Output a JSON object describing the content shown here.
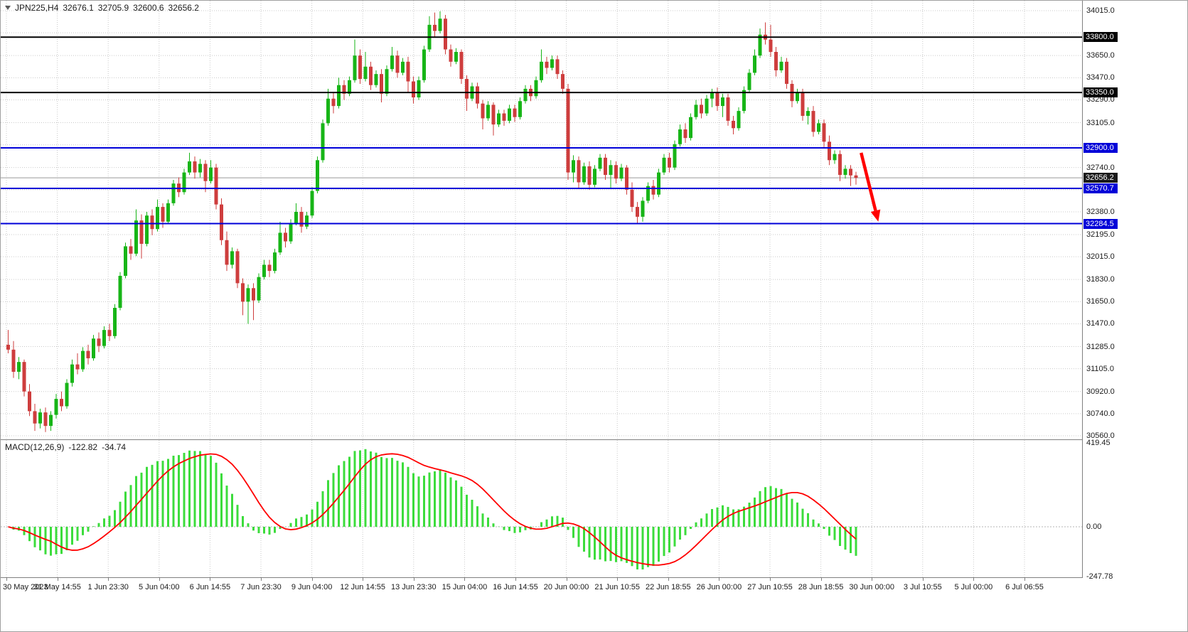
{
  "header": {
    "symbol": "JPN225,H4",
    "open": "32676.1",
    "high": "32705.9",
    "low": "32600.6",
    "close": "32656.2"
  },
  "macd": {
    "label": "MACD(12,26,9)",
    "main_value": "-122.82",
    "signal_value": "-34.74"
  },
  "chart_data": {
    "type": "candlestick",
    "symbol": "JPN225",
    "timeframe": "H4",
    "title": "JPN225,H4 32676.1 32705.9 32600.6 32656.2",
    "ohlc_header": {
      "open": 32676.1,
      "high": 32705.9,
      "low": 32600.6,
      "close": 32656.2
    },
    "price_axis": {
      "min": 30560,
      "max": 34015,
      "grid_values": [
        34015,
        33835,
        33650,
        33470,
        33290,
        33105,
        32925,
        32740,
        32560,
        32380,
        32195,
        32015,
        31830,
        31650,
        31470,
        31285,
        31105,
        30920,
        30740,
        30560
      ],
      "tick_labels": [
        {
          "value": 34015,
          "text": "34015.0"
        },
        {
          "value": 33650,
          "text": "33650.0"
        },
        {
          "value": 33470,
          "text": "33470.0"
        },
        {
          "value": 33290,
          "text": "33290.0"
        },
        {
          "value": 33105,
          "text": "33105.0"
        },
        {
          "value": 32740,
          "text": "32740.0"
        },
        {
          "value": 32380,
          "text": "32380.0"
        },
        {
          "value": 32195,
          "text": "32195.0"
        },
        {
          "value": 32015,
          "text": "32015.0"
        },
        {
          "value": 31830,
          "text": "31830.0"
        },
        {
          "value": 31650,
          "text": "31650.0"
        },
        {
          "value": 31470,
          "text": "31470.0"
        },
        {
          "value": 31285,
          "text": "31285.0"
        },
        {
          "value": 31105,
          "text": "31105.0"
        },
        {
          "value": 30920,
          "text": "30920.0"
        },
        {
          "value": 30740,
          "text": "30740.0"
        },
        {
          "value": 30560,
          "text": "30560.0"
        }
      ]
    },
    "time_labels": [
      "30 May 2023",
      "31 May 14:55",
      "1 Jun 23:30",
      "5 Jun 04:00",
      "6 Jun 14:55",
      "7 Jun 23:30",
      "9 Jun 04:00",
      "12 Jun 14:55",
      "13 Jun 23:30",
      "15 Jun 04:00",
      "16 Jun 14:55",
      "20 Jun 00:00",
      "21 Jun 10:55",
      "22 Jun 18:55",
      "26 Jun 00:00",
      "27 Jun 10:55",
      "28 Jun 18:55",
      "30 Jun 00:00",
      "3 Jul 10:55",
      "5 Jul 00:00",
      "6 Jul 06:55"
    ],
    "horizontal_lines": [
      {
        "price": 33800.0,
        "label": "33800.0",
        "color": "#000000"
      },
      {
        "price": 33350.0,
        "label": "33350.0",
        "color": "#000000"
      },
      {
        "price": 32900.0,
        "label": "32900.0",
        "color": "#0000d8"
      },
      {
        "price": 32570.7,
        "label": "32570.7",
        "color": "#0000d8"
      },
      {
        "price": 32284.5,
        "label": "32284.5",
        "color": "#0000d8"
      }
    ],
    "current_price": {
      "value": 32656.2,
      "label": "32656.2",
      "badge_color": "#1a1a1a"
    },
    "arrow": {
      "bar_from": 160.3,
      "price_from": 32860,
      "bar_to": 163,
      "price_to": 32390,
      "color": "#ff0000"
    },
    "indicator": {
      "name": "MACD",
      "params": [
        12,
        26,
        9
      ],
      "main_value": -122.82,
      "signal_value": -34.74,
      "axis": {
        "max": 419.45,
        "zero": 0.0,
        "min": -247.78
      },
      "tick_labels": [
        {
          "value": 419.45,
          "text": "419.45"
        },
        {
          "value": 0,
          "text": "0.00"
        },
        {
          "value": -247.78,
          "text": "-247.78"
        }
      ]
    },
    "colors": {
      "bull": "#17b517",
      "bear": "#ce3d3d",
      "macd_hist": "#3cdc3c",
      "macd_signal": "#ff0000",
      "grid": "#c9c9c9",
      "hline_blue": "#0000d8",
      "hline_black": "#000000",
      "current_line": "#9a9a9a"
    },
    "candles": [
      [
        31300,
        31420,
        31230,
        31260
      ],
      [
        31260,
        31330,
        31030,
        31080
      ],
      [
        31080,
        31200,
        31020,
        31160
      ],
      [
        31160,
        31180,
        30880,
        30920
      ],
      [
        30920,
        30980,
        30720,
        30760
      ],
      [
        30760,
        30820,
        30600,
        30660
      ],
      [
        30660,
        30780,
        30620,
        30750
      ],
      [
        30750,
        30790,
        30590,
        30640
      ],
      [
        30640,
        30760,
        30600,
        30730
      ],
      [
        30730,
        30900,
        30700,
        30860
      ],
      [
        30860,
        30920,
        30760,
        30800
      ],
      [
        30800,
        31020,
        30780,
        30990
      ],
      [
        30990,
        31180,
        30960,
        31140
      ],
      [
        31140,
        31230,
        31060,
        31100
      ],
      [
        31100,
        31280,
        31080,
        31250
      ],
      [
        31250,
        31300,
        31140,
        31190
      ],
      [
        31190,
        31380,
        31170,
        31350
      ],
      [
        31350,
        31400,
        31240,
        31290
      ],
      [
        31290,
        31450,
        31270,
        31420
      ],
      [
        31420,
        31470,
        31330,
        31370
      ],
      [
        31370,
        31630,
        31350,
        31600
      ],
      [
        31600,
        31890,
        31580,
        31860
      ],
      [
        31860,
        32130,
        31840,
        32100
      ],
      [
        32100,
        32160,
        31990,
        32040
      ],
      [
        32040,
        32400,
        32020,
        32310
      ],
      [
        32310,
        32360,
        32000,
        32120
      ],
      [
        32120,
        32380,
        32100,
        32350
      ],
      [
        32350,
        32400,
        32190,
        32240
      ],
      [
        32240,
        32480,
        32220,
        32420
      ],
      [
        32420,
        32450,
        32250,
        32300
      ],
      [
        32300,
        32480,
        32280,
        32450
      ],
      [
        32450,
        32640,
        32430,
        32610
      ],
      [
        32610,
        32660,
        32500,
        32540
      ],
      [
        32540,
        32730,
        32520,
        32700
      ],
      [
        32700,
        32860,
        32680,
        32790
      ],
      [
        32790,
        32830,
        32650,
        32700
      ],
      [
        32700,
        32810,
        32660,
        32770
      ],
      [
        32770,
        32800,
        32540,
        32630
      ],
      [
        32630,
        32800,
        32610,
        32740
      ],
      [
        32740,
        32770,
        32400,
        32440
      ],
      [
        32440,
        32490,
        32110,
        32150
      ],
      [
        32150,
        32220,
        31900,
        31950
      ],
      [
        31950,
        32090,
        31920,
        32060
      ],
      [
        32060,
        32080,
        31760,
        31800
      ],
      [
        31800,
        31840,
        31540,
        31650
      ],
      [
        31650,
        31790,
        31470,
        31760
      ],
      [
        31760,
        31800,
        31500,
        31660
      ],
      [
        31660,
        31880,
        31640,
        31850
      ],
      [
        31850,
        31990,
        31830,
        31950
      ],
      [
        31950,
        31990,
        31850,
        31900
      ],
      [
        31900,
        32080,
        31880,
        32050
      ],
      [
        32050,
        32300,
        32030,
        32210
      ],
      [
        32210,
        32250,
        32090,
        32140
      ],
      [
        32140,
        32320,
        32120,
        32290
      ],
      [
        32290,
        32450,
        32270,
        32380
      ],
      [
        32380,
        32420,
        32210,
        32260
      ],
      [
        32260,
        32380,
        32240,
        32350
      ],
      [
        32350,
        32580,
        32330,
        32550
      ],
      [
        32550,
        32830,
        32530,
        32800
      ],
      [
        32800,
        33130,
        32780,
        33100
      ],
      [
        33100,
        33380,
        33080,
        33300
      ],
      [
        33300,
        33350,
        33180,
        33240
      ],
      [
        33240,
        33470,
        33220,
        33410
      ],
      [
        33410,
        33450,
        33290,
        33340
      ],
      [
        33340,
        33480,
        33320,
        33450
      ],
      [
        33450,
        33780,
        33430,
        33650
      ],
      [
        33650,
        33700,
        33420,
        33460
      ],
      [
        33460,
        33680,
        33440,
        33560
      ],
      [
        33560,
        33600,
        33370,
        33410
      ],
      [
        33410,
        33530,
        33390,
        33500
      ],
      [
        33500,
        33540,
        33270,
        33340
      ],
      [
        33340,
        33570,
        33320,
        33540
      ],
      [
        33540,
        33720,
        33520,
        33650
      ],
      [
        33650,
        33690,
        33470,
        33510
      ],
      [
        33510,
        33630,
        33490,
        33600
      ],
      [
        33600,
        33640,
        33350,
        33440
      ],
      [
        33440,
        33480,
        33260,
        33310
      ],
      [
        33310,
        33480,
        33290,
        33450
      ],
      [
        33450,
        33730,
        33430,
        33700
      ],
      [
        33700,
        33970,
        33680,
        33900
      ],
      [
        33900,
        34000,
        33800,
        33850
      ],
      [
        33850,
        34010,
        33830,
        33950
      ],
      [
        33950,
        33980,
        33660,
        33700
      ],
      [
        33700,
        33740,
        33560,
        33600
      ],
      [
        33600,
        33710,
        33580,
        33680
      ],
      [
        33680,
        33700,
        33420,
        33460
      ],
      [
        33460,
        33490,
        33200,
        33300
      ],
      [
        33300,
        33430,
        33280,
        33400
      ],
      [
        33400,
        33430,
        33220,
        33260
      ],
      [
        33260,
        33290,
        33050,
        33140
      ],
      [
        33140,
        33280,
        33120,
        33250
      ],
      [
        33250,
        33270,
        33000,
        33090
      ],
      [
        33090,
        33210,
        33070,
        33180
      ],
      [
        33180,
        33210,
        33080,
        33120
      ],
      [
        33120,
        33250,
        33100,
        33220
      ],
      [
        33220,
        33250,
        33110,
        33150
      ],
      [
        33150,
        33310,
        33130,
        33280
      ],
      [
        33280,
        33410,
        33260,
        33380
      ],
      [
        33380,
        33410,
        33280,
        33320
      ],
      [
        33320,
        33480,
        33300,
        33450
      ],
      [
        33450,
        33700,
        33430,
        33600
      ],
      [
        33600,
        33640,
        33500,
        33550
      ],
      [
        33550,
        33650,
        33530,
        33620
      ],
      [
        33620,
        33650,
        33460,
        33500
      ],
      [
        33500,
        33530,
        33340,
        33380
      ],
      [
        33380,
        33420,
        32640,
        32700
      ],
      [
        32700,
        32840,
        32620,
        32800
      ],
      [
        32800,
        32830,
        32570,
        32620
      ],
      [
        32620,
        32780,
        32600,
        32750
      ],
      [
        32750,
        32790,
        32560,
        32600
      ],
      [
        32600,
        32760,
        32580,
        32730
      ],
      [
        32730,
        32850,
        32710,
        32820
      ],
      [
        32820,
        32850,
        32640,
        32680
      ],
      [
        32680,
        32800,
        32570,
        32760
      ],
      [
        32760,
        32790,
        32610,
        32650
      ],
      [
        32650,
        32770,
        32630,
        32740
      ],
      [
        32740,
        32760,
        32520,
        32560
      ],
      [
        32560,
        32620,
        32380,
        32420
      ],
      [
        32420,
        32460,
        32290,
        32340
      ],
      [
        32340,
        32500,
        32300,
        32470
      ],
      [
        32470,
        32620,
        32450,
        32590
      ],
      [
        32590,
        32640,
        32480,
        32520
      ],
      [
        32520,
        32730,
        32500,
        32700
      ],
      [
        32700,
        32850,
        32680,
        32820
      ],
      [
        32820,
        32860,
        32700,
        32740
      ],
      [
        32740,
        32960,
        32720,
        32930
      ],
      [
        32930,
        33090,
        32910,
        33050
      ],
      [
        33050,
        33100,
        32940,
        32980
      ],
      [
        32980,
        33180,
        32960,
        33150
      ],
      [
        33150,
        33290,
        33130,
        33250
      ],
      [
        33250,
        33300,
        33140,
        33180
      ],
      [
        33180,
        33330,
        33160,
        33300
      ],
      [
        33300,
        33380,
        33230,
        33350
      ],
      [
        33350,
        33390,
        33200,
        33240
      ],
      [
        33240,
        33340,
        33150,
        33310
      ],
      [
        33310,
        33340,
        33080,
        33120
      ],
      [
        33120,
        33160,
        33010,
        33060
      ],
      [
        33060,
        33230,
        33040,
        33200
      ],
      [
        33200,
        33400,
        33180,
        33370
      ],
      [
        33370,
        33540,
        33350,
        33510
      ],
      [
        33510,
        33700,
        33490,
        33650
      ],
      [
        33650,
        33870,
        33630,
        33820
      ],
      [
        33820,
        33920,
        33740,
        33780
      ],
      [
        33780,
        33900,
        33640,
        33680
      ],
      [
        33680,
        33720,
        33480,
        33530
      ],
      [
        33530,
        33640,
        33510,
        33600
      ],
      [
        33600,
        33630,
        33380,
        33420
      ],
      [
        33420,
        33450,
        33230,
        33280
      ],
      [
        33280,
        33380,
        33260,
        33350
      ],
      [
        33350,
        33380,
        33120,
        33160
      ],
      [
        33160,
        33230,
        33090,
        33200
      ],
      [
        33200,
        33240,
        32990,
        33030
      ],
      [
        33030,
        33130,
        33010,
        33100
      ],
      [
        33100,
        33130,
        32900,
        32950
      ],
      [
        32950,
        33000,
        32760,
        32800
      ],
      [
        32800,
        32880,
        32770,
        32850
      ],
      [
        32850,
        32880,
        32630,
        32680
      ],
      [
        32680,
        32760,
        32650,
        32730
      ],
      [
        32730,
        32760,
        32590,
        32676
      ],
      [
        32676.1,
        32705.9,
        32600.6,
        32656.2
      ]
    ]
  }
}
